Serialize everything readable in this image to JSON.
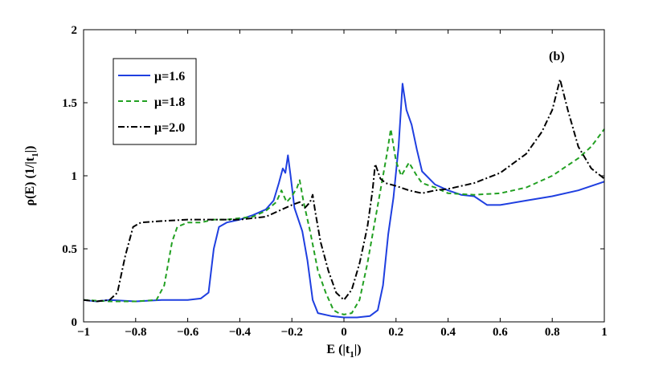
{
  "chart_data": {
    "type": "line",
    "title": "",
    "annotation": "(b)",
    "xlabel": "E (|t",
    "xlabel_sub": "1",
    "xlabel_end": "|)",
    "ylabel": "ρ(E) (1/|t",
    "ylabel_sub": "1",
    "ylabel_end": "|)",
    "xlim": [
      -1,
      1
    ],
    "ylim": [
      0,
      2
    ],
    "xticks": [
      -1,
      -0.8,
      -0.6,
      -0.4,
      -0.2,
      0,
      0.2,
      0.4,
      0.6,
      0.8,
      1
    ],
    "xtick_labels": [
      "−1",
      "−0.8",
      "−0.6",
      "−0.4",
      "−0.2",
      "0",
      "0.2",
      "0.4",
      "0.6",
      "0.8",
      "1"
    ],
    "yticks": [
      0,
      0.5,
      1,
      1.5,
      2
    ],
    "ytick_labels": [
      "0",
      "0.5",
      "1",
      "1.5",
      "2"
    ],
    "grid": false,
    "legend_position": "top-left",
    "series": [
      {
        "name": "μ=1.6",
        "color": "#1f3fe0",
        "style": "solid",
        "points": [
          [
            -1.0,
            0.15
          ],
          [
            -0.95,
            0.14
          ],
          [
            -0.9,
            0.15
          ],
          [
            -0.8,
            0.14
          ],
          [
            -0.7,
            0.15
          ],
          [
            -0.6,
            0.15
          ],
          [
            -0.55,
            0.16
          ],
          [
            -0.52,
            0.2
          ],
          [
            -0.5,
            0.5
          ],
          [
            -0.48,
            0.65
          ],
          [
            -0.45,
            0.68
          ],
          [
            -0.4,
            0.7
          ],
          [
            -0.35,
            0.73
          ],
          [
            -0.3,
            0.77
          ],
          [
            -0.27,
            0.83
          ],
          [
            -0.25,
            0.95
          ],
          [
            -0.235,
            1.05
          ],
          [
            -0.225,
            1.02
          ],
          [
            -0.215,
            1.14
          ],
          [
            -0.205,
            1.0
          ],
          [
            -0.19,
            0.78
          ],
          [
            -0.16,
            0.62
          ],
          [
            -0.14,
            0.42
          ],
          [
            -0.12,
            0.15
          ],
          [
            -0.1,
            0.06
          ],
          [
            -0.05,
            0.04
          ],
          [
            0.0,
            0.03
          ],
          [
            0.05,
            0.03
          ],
          [
            0.1,
            0.04
          ],
          [
            0.13,
            0.08
          ],
          [
            0.15,
            0.25
          ],
          [
            0.17,
            0.6
          ],
          [
            0.19,
            0.85
          ],
          [
            0.21,
            1.2
          ],
          [
            0.225,
            1.63
          ],
          [
            0.24,
            1.45
          ],
          [
            0.26,
            1.35
          ],
          [
            0.28,
            1.18
          ],
          [
            0.3,
            1.03
          ],
          [
            0.35,
            0.94
          ],
          [
            0.4,
            0.9
          ],
          [
            0.45,
            0.87
          ],
          [
            0.5,
            0.86
          ],
          [
            0.55,
            0.8
          ],
          [
            0.6,
            0.8
          ],
          [
            0.7,
            0.83
          ],
          [
            0.8,
            0.86
          ],
          [
            0.9,
            0.9
          ],
          [
            1.0,
            0.96
          ]
        ]
      },
      {
        "name": "μ=1.8",
        "color": "#22a022",
        "style": "dashed",
        "points": [
          [
            -1.0,
            0.15
          ],
          [
            -0.9,
            0.14
          ],
          [
            -0.8,
            0.14
          ],
          [
            -0.72,
            0.15
          ],
          [
            -0.69,
            0.25
          ],
          [
            -0.66,
            0.55
          ],
          [
            -0.64,
            0.65
          ],
          [
            -0.6,
            0.68
          ],
          [
            -0.55,
            0.68
          ],
          [
            -0.5,
            0.7
          ],
          [
            -0.45,
            0.7
          ],
          [
            -0.4,
            0.71
          ],
          [
            -0.35,
            0.72
          ],
          [
            -0.3,
            0.76
          ],
          [
            -0.26,
            0.82
          ],
          [
            -0.24,
            0.9
          ],
          [
            -0.22,
            0.82
          ],
          [
            -0.2,
            0.86
          ],
          [
            -0.18,
            0.92
          ],
          [
            -0.17,
            0.97
          ],
          [
            -0.155,
            0.82
          ],
          [
            -0.13,
            0.62
          ],
          [
            -0.1,
            0.35
          ],
          [
            -0.07,
            0.2
          ],
          [
            -0.04,
            0.08
          ],
          [
            -0.02,
            0.06
          ],
          [
            0.0,
            0.05
          ],
          [
            0.03,
            0.06
          ],
          [
            0.06,
            0.15
          ],
          [
            0.09,
            0.4
          ],
          [
            0.12,
            0.7
          ],
          [
            0.14,
            0.9
          ],
          [
            0.165,
            1.15
          ],
          [
            0.18,
            1.32
          ],
          [
            0.2,
            1.1
          ],
          [
            0.22,
            1.0
          ],
          [
            0.25,
            1.09
          ],
          [
            0.28,
            1.0
          ],
          [
            0.3,
            0.95
          ],
          [
            0.35,
            0.92
          ],
          [
            0.4,
            0.88
          ],
          [
            0.5,
            0.87
          ],
          [
            0.6,
            0.88
          ],
          [
            0.7,
            0.92
          ],
          [
            0.8,
            1.0
          ],
          [
            0.9,
            1.12
          ],
          [
            0.95,
            1.2
          ],
          [
            1.0,
            1.32
          ]
        ]
      },
      {
        "name": "μ=2.0",
        "color": "#000000",
        "style": "dashdot",
        "points": [
          [
            -1.0,
            0.15
          ],
          [
            -0.95,
            0.14
          ],
          [
            -0.9,
            0.15
          ],
          [
            -0.87,
            0.2
          ],
          [
            -0.84,
            0.45
          ],
          [
            -0.81,
            0.65
          ],
          [
            -0.78,
            0.68
          ],
          [
            -0.7,
            0.69
          ],
          [
            -0.6,
            0.7
          ],
          [
            -0.5,
            0.7
          ],
          [
            -0.4,
            0.7
          ],
          [
            -0.3,
            0.72
          ],
          [
            -0.25,
            0.76
          ],
          [
            -0.2,
            0.8
          ],
          [
            -0.17,
            0.82
          ],
          [
            -0.15,
            0.78
          ],
          [
            -0.13,
            0.82
          ],
          [
            -0.12,
            0.87
          ],
          [
            -0.11,
            0.75
          ],
          [
            -0.09,
            0.55
          ],
          [
            -0.06,
            0.35
          ],
          [
            -0.03,
            0.2
          ],
          [
            0.0,
            0.15
          ],
          [
            0.03,
            0.22
          ],
          [
            0.06,
            0.4
          ],
          [
            0.09,
            0.65
          ],
          [
            0.11,
            0.9
          ],
          [
            0.12,
            1.08
          ],
          [
            0.14,
            0.98
          ],
          [
            0.16,
            0.95
          ],
          [
            0.2,
            0.93
          ],
          [
            0.25,
            0.9
          ],
          [
            0.3,
            0.88
          ],
          [
            0.35,
            0.9
          ],
          [
            0.4,
            0.91
          ],
          [
            0.5,
            0.95
          ],
          [
            0.6,
            1.02
          ],
          [
            0.7,
            1.15
          ],
          [
            0.76,
            1.3
          ],
          [
            0.8,
            1.45
          ],
          [
            0.83,
            1.66
          ],
          [
            0.86,
            1.45
          ],
          [
            0.9,
            1.2
          ],
          [
            0.95,
            1.05
          ],
          [
            1.0,
            0.98
          ]
        ]
      }
    ]
  }
}
